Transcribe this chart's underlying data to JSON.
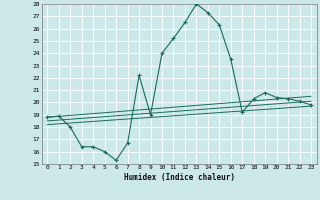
{
  "xlabel": "Humidex (Indice chaleur)",
  "bg_color": "#cce8e8",
  "grid_color": "#ffffff",
  "line_color": "#1a6b5a",
  "xlim": [
    -0.5,
    23.5
  ],
  "ylim": [
    15,
    28
  ],
  "xticks": [
    0,
    1,
    2,
    3,
    4,
    5,
    6,
    7,
    8,
    9,
    10,
    11,
    12,
    13,
    14,
    15,
    16,
    17,
    18,
    19,
    20,
    21,
    22,
    23
  ],
  "yticks": [
    15,
    16,
    17,
    18,
    19,
    20,
    21,
    22,
    23,
    24,
    25,
    26,
    27,
    28
  ],
  "series_main": {
    "x": [
      0,
      1,
      2,
      3,
      4,
      5,
      6,
      7,
      8,
      9,
      10,
      11,
      12,
      13,
      14,
      15,
      16,
      17,
      18,
      19,
      20,
      21,
      22,
      23
    ],
    "y": [
      18.8,
      18.9,
      18.0,
      16.4,
      16.4,
      16.0,
      15.3,
      16.7,
      22.2,
      19.0,
      24.0,
      25.2,
      26.5,
      28.0,
      27.3,
      26.3,
      23.5,
      19.2,
      20.3,
      20.8,
      20.4,
      20.3,
      20.1,
      19.8
    ]
  },
  "series_trends": [
    {
      "x": [
        0,
        23
      ],
      "y": [
        18.8,
        20.5
      ]
    },
    {
      "x": [
        0,
        23
      ],
      "y": [
        18.5,
        20.1
      ]
    },
    {
      "x": [
        0,
        23
      ],
      "y": [
        18.2,
        19.7
      ]
    }
  ]
}
